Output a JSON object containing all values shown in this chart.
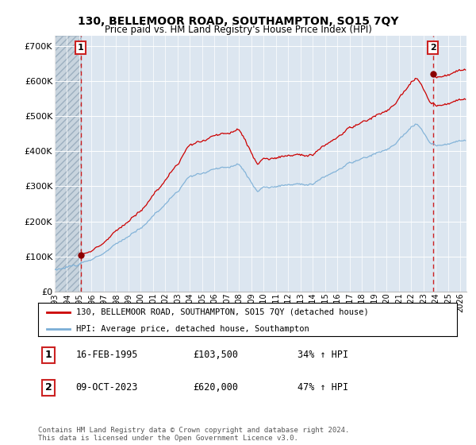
{
  "title": "130, BELLEMOOR ROAD, SOUTHAMPTON, SO15 7QY",
  "subtitle": "Price paid vs. HM Land Registry's House Price Index (HPI)",
  "xlim": [
    1993.0,
    2026.5
  ],
  "ylim": [
    0,
    730000
  ],
  "yticks": [
    0,
    100000,
    200000,
    300000,
    400000,
    500000,
    600000,
    700000
  ],
  "ytick_labels": [
    "£0",
    "£100K",
    "£200K",
    "£300K",
    "£400K",
    "£500K",
    "£600K",
    "£700K"
  ],
  "xticks": [
    1993,
    1994,
    1995,
    1996,
    1997,
    1998,
    1999,
    2000,
    2001,
    2002,
    2003,
    2004,
    2005,
    2006,
    2007,
    2008,
    2009,
    2010,
    2011,
    2012,
    2013,
    2014,
    2015,
    2016,
    2017,
    2018,
    2019,
    2020,
    2021,
    2022,
    2023,
    2024,
    2025,
    2026
  ],
  "transaction1_date": 1995.12,
  "transaction1_price": 103500,
  "transaction2_date": 2023.77,
  "transaction2_price": 620000,
  "legend_line1": "130, BELLEMOOR ROAD, SOUTHAMPTON, SO15 7QY (detached house)",
  "legend_line2": "HPI: Average price, detached house, Southampton",
  "ann1_date": "16-FEB-1995",
  "ann1_price": "£103,500",
  "ann1_hpi": "34% ↑ HPI",
  "ann2_date": "09-OCT-2023",
  "ann2_price": "£620,000",
  "ann2_hpi": "47% ↑ HPI",
  "footer": "Contains HM Land Registry data © Crown copyright and database right 2024.\nThis data is licensed under the Open Government Licence v3.0.",
  "plot_bg": "#dce6f0",
  "grid_color": "#ffffff",
  "red_line_color": "#cc0000",
  "blue_line_color": "#7aaed6",
  "dashed_vline_color": "#cc0000",
  "marker_color": "#8b0000",
  "box_color": "#cc2222"
}
